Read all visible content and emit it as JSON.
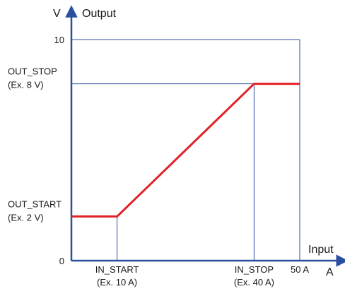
{
  "chart_data": {
    "type": "line",
    "title": "",
    "xlabel": "Input",
    "ylabel": "Output",
    "x_unit": "A",
    "y_unit": "V",
    "xlim": [
      0,
      50
    ],
    "ylim": [
      0,
      10
    ],
    "grid": false,
    "x_ticks": [
      {
        "value": 10,
        "label": "IN_START",
        "sublabel": "(Ex. 10 A)"
      },
      {
        "value": 40,
        "label": "IN_STOP",
        "sublabel": "(Ex. 40 A)"
      },
      {
        "value": 50,
        "label": "50 A",
        "sublabel": ""
      }
    ],
    "y_ticks": [
      {
        "value": 0,
        "label": "0",
        "sublabel": ""
      },
      {
        "value": 2,
        "label": "OUT_START",
        "sublabel": "(Ex. 2 V)"
      },
      {
        "value": 8,
        "label": "OUT_STOP",
        "sublabel": "(Ex. 8 V)"
      },
      {
        "value": 10,
        "label": "10",
        "sublabel": ""
      }
    ],
    "series": [
      {
        "x": [
          0,
          10,
          40,
          50
        ],
        "y": [
          2,
          2,
          8,
          8
        ]
      }
    ],
    "colors": {
      "axis": "#2b4fa0",
      "guide": "#2b4fa0",
      "series": "#e32228",
      "text": "#1a1a1a"
    }
  }
}
